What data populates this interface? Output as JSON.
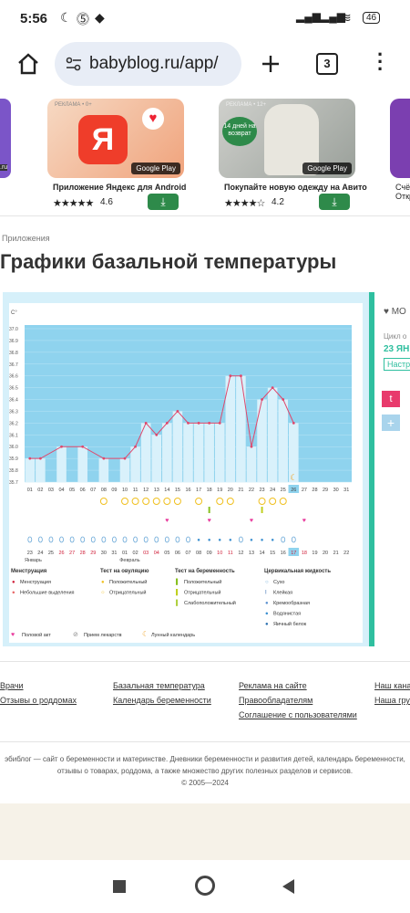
{
  "status": {
    "time": "5:56",
    "battery": "46"
  },
  "browser": {
    "url": "babyblog.ru/app/",
    "tabs": "3"
  },
  "ads": [
    {
      "label": "РЕКЛАМА • 0+",
      "title": "Приложение Яндекс для Android",
      "stars": "★★★★★",
      "rating": "4.6",
      "badge": "Google Play",
      "logo": "Я"
    },
    {
      "label": "РЕКЛАМА • 12+",
      "title": "Покупайте новую одежду на Авито",
      "stars": "★★★★☆",
      "rating": "4.2",
      "badge": "Google Play",
      "promo": "14 дней на возврат"
    },
    {
      "label": "",
      "title": "Счёт Откр"
    }
  ],
  "left_ad_text": ".ru",
  "breadcrumb": "Приложения",
  "page_title": "Графики базальной температуры",
  "chart_data": {
    "type": "line",
    "ylabel": "C°",
    "yticks": [
      "37.0",
      "36.9",
      "36.8",
      "36.7",
      "36.6",
      "36.5",
      "36.4",
      "36.3",
      "36.2",
      "36.1",
      "36.0",
      "35.9",
      "35.8",
      "35.7"
    ],
    "x": [
      "01",
      "02",
      "03",
      "04",
      "05",
      "06",
      "07",
      "08",
      "09",
      "10",
      "11",
      "12",
      "13",
      "14",
      "15",
      "16",
      "17",
      "18",
      "19",
      "20",
      "21",
      "22",
      "23",
      "24",
      "25",
      "26",
      "27",
      "28",
      "29",
      "30",
      "31"
    ],
    "values": [
      35.9,
      35.9,
      null,
      36.0,
      null,
      36.0,
      null,
      35.9,
      null,
      35.9,
      36.0,
      36.2,
      36.1,
      36.2,
      36.3,
      36.2,
      36.2,
      36.2,
      36.2,
      36.6,
      36.6,
      36.0,
      36.4,
      36.5,
      36.4,
      36.2,
      null,
      null,
      null,
      null,
      null
    ],
    "highlight_day": "26",
    "dates_row": [
      "23",
      "24",
      "25",
      "26",
      "27",
      "28",
      "29",
      "30",
      "31",
      "01",
      "02",
      "03",
      "04",
      "05",
      "06",
      "07",
      "08",
      "09",
      "10",
      "11",
      "12",
      "13",
      "14",
      "15",
      "16",
      "17",
      "18",
      "19",
      "20",
      "21",
      "22"
    ],
    "months": [
      "Январь",
      "Февраль"
    ]
  },
  "legend": {
    "menstruation": {
      "title": "Менструация",
      "items": [
        "Менструация",
        "Небольшие выделения"
      ]
    },
    "ovulation": {
      "title": "Тест на овуляцию",
      "items": [
        "Положительный",
        "Отрицательный"
      ]
    },
    "pregnancy": {
      "title": "Тест на беременность",
      "items": [
        "Положительный",
        "Отрицательный",
        "Слабоположительный"
      ]
    },
    "cervical": {
      "title": "Цервикальная жидкость",
      "items": [
        "Сухо",
        "Клейкая",
        "Кремообразная",
        "Водянистая",
        "Яичный белок"
      ]
    },
    "bottom": [
      "Половой акт",
      "Прием лекарств",
      "Лунный календарь"
    ]
  },
  "side": {
    "label": "МО",
    "cycle": "Цикл о",
    "date": "23 ЯН",
    "btn": "Настр"
  },
  "footer_links": [
    [
      "Врачи",
      "Отзывы о роддомах"
    ],
    [
      "Базальная температура",
      "Календарь беременности"
    ],
    [
      "Реклама на сайте",
      "Правообладателям",
      "Соглашение с пользователями"
    ],
    [
      "Наш канал",
      "Наша груп"
    ]
  ],
  "footer_text": "эбиблог — сайт о беременности и материнстве. Дневники беременности и развития детей, календарь беременности, отзывы о товарах, роддома, а также множество других полезных разделов и сервисов.",
  "copyright": "© 2005—2024"
}
